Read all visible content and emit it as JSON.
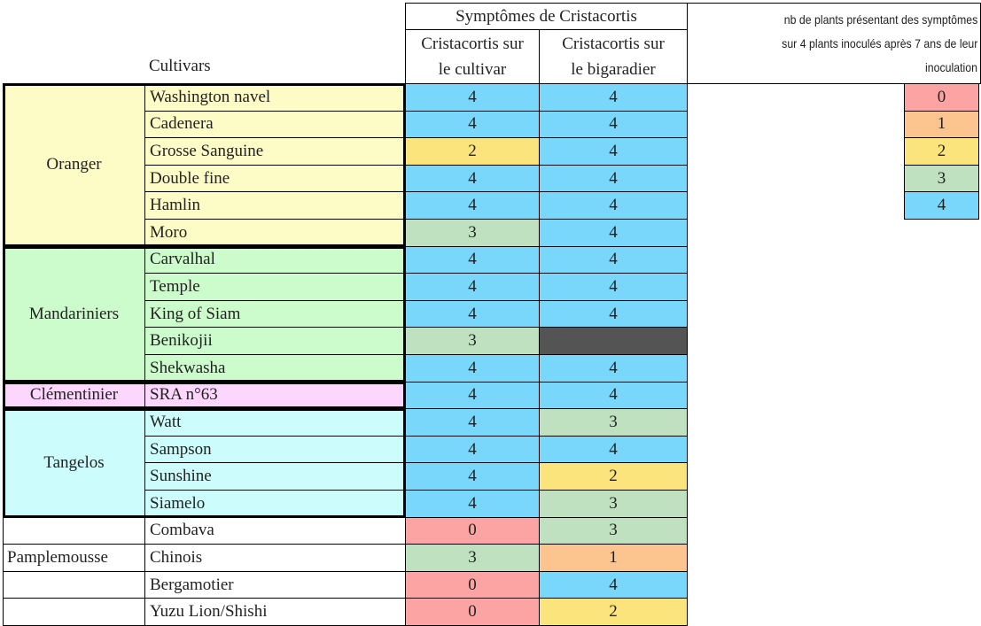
{
  "header": {
    "title": "Symptômes de Cristacortis",
    "columns": [
      [
        "Cristacortis sur",
        "le cultivar"
      ],
      [
        "Cristacortis sur",
        "le bigaradier"
      ]
    ],
    "row_label": "Cultivars"
  },
  "groups": [
    {
      "name": "Oranger",
      "color": "#fdfcc6",
      "framed": true,
      "rows": [
        {
          "cultivar": "Washington navel",
          "values": [
            4,
            4
          ]
        },
        {
          "cultivar": "Cadenera",
          "values": [
            4,
            4
          ]
        },
        {
          "cultivar": "Grosse Sanguine",
          "values": [
            2,
            4
          ]
        },
        {
          "cultivar": "Double fine",
          "values": [
            4,
            4
          ]
        },
        {
          "cultivar": "Hamlin",
          "values": [
            4,
            4
          ]
        },
        {
          "cultivar": "Moro",
          "values": [
            3,
            4
          ]
        }
      ]
    },
    {
      "name": "Mandariniers",
      "color": "#ccfccc",
      "framed": true,
      "rows": [
        {
          "cultivar": "Carvalhal",
          "values": [
            4,
            4
          ]
        },
        {
          "cultivar": "Temple",
          "values": [
            4,
            4
          ]
        },
        {
          "cultivar": "King of Siam",
          "values": [
            4,
            4
          ]
        },
        {
          "cultivar": "Benikojii",
          "values": [
            3,
            null
          ]
        },
        {
          "cultivar": "Shekwasha",
          "values": [
            4,
            4
          ]
        }
      ]
    },
    {
      "name": "Clémentinier",
      "color": "#fcd6fc",
      "framed": true,
      "rows": [
        {
          "cultivar": "SRA n°63",
          "values": [
            4,
            4
          ]
        }
      ]
    },
    {
      "name": "Tangelos",
      "color": "#ccfcfc",
      "framed": true,
      "rows": [
        {
          "cultivar": "Watt",
          "values": [
            4,
            3
          ]
        },
        {
          "cultivar": "Sampson",
          "values": [
            4,
            4
          ]
        },
        {
          "cultivar": "Sunshine",
          "values": [
            4,
            2
          ]
        },
        {
          "cultivar": "Siamelo",
          "values": [
            4,
            3
          ]
        }
      ]
    },
    {
      "name": "Pamplemousse",
      "color": "#ffffff",
      "framed": false,
      "rows": [
        {
          "cultivar": "Combava",
          "values": [
            0,
            3
          ]
        },
        {
          "cultivar": "Chinois",
          "values": [
            3,
            1
          ]
        },
        {
          "cultivar": "Bergamotier",
          "values": [
            0,
            4
          ]
        },
        {
          "cultivar": "Yuzu Lion/Shishi",
          "values": [
            0,
            2
          ]
        }
      ]
    }
  ],
  "legend": {
    "title": [
      "nb de plants présentant des symptômes",
      "sur 4 plants inoculés après 7 ans de  leur",
      "inoculation"
    ],
    "items": [
      {
        "value": 0,
        "color": "#fca3a3"
      },
      {
        "value": 1,
        "color": "#fcc48e"
      },
      {
        "value": 2,
        "color": "#fce47c"
      },
      {
        "value": 3,
        "color": "#bfe1bf"
      },
      {
        "value": 4,
        "color": "#78d7fb"
      }
    ],
    "missing_color": "#545454"
  }
}
